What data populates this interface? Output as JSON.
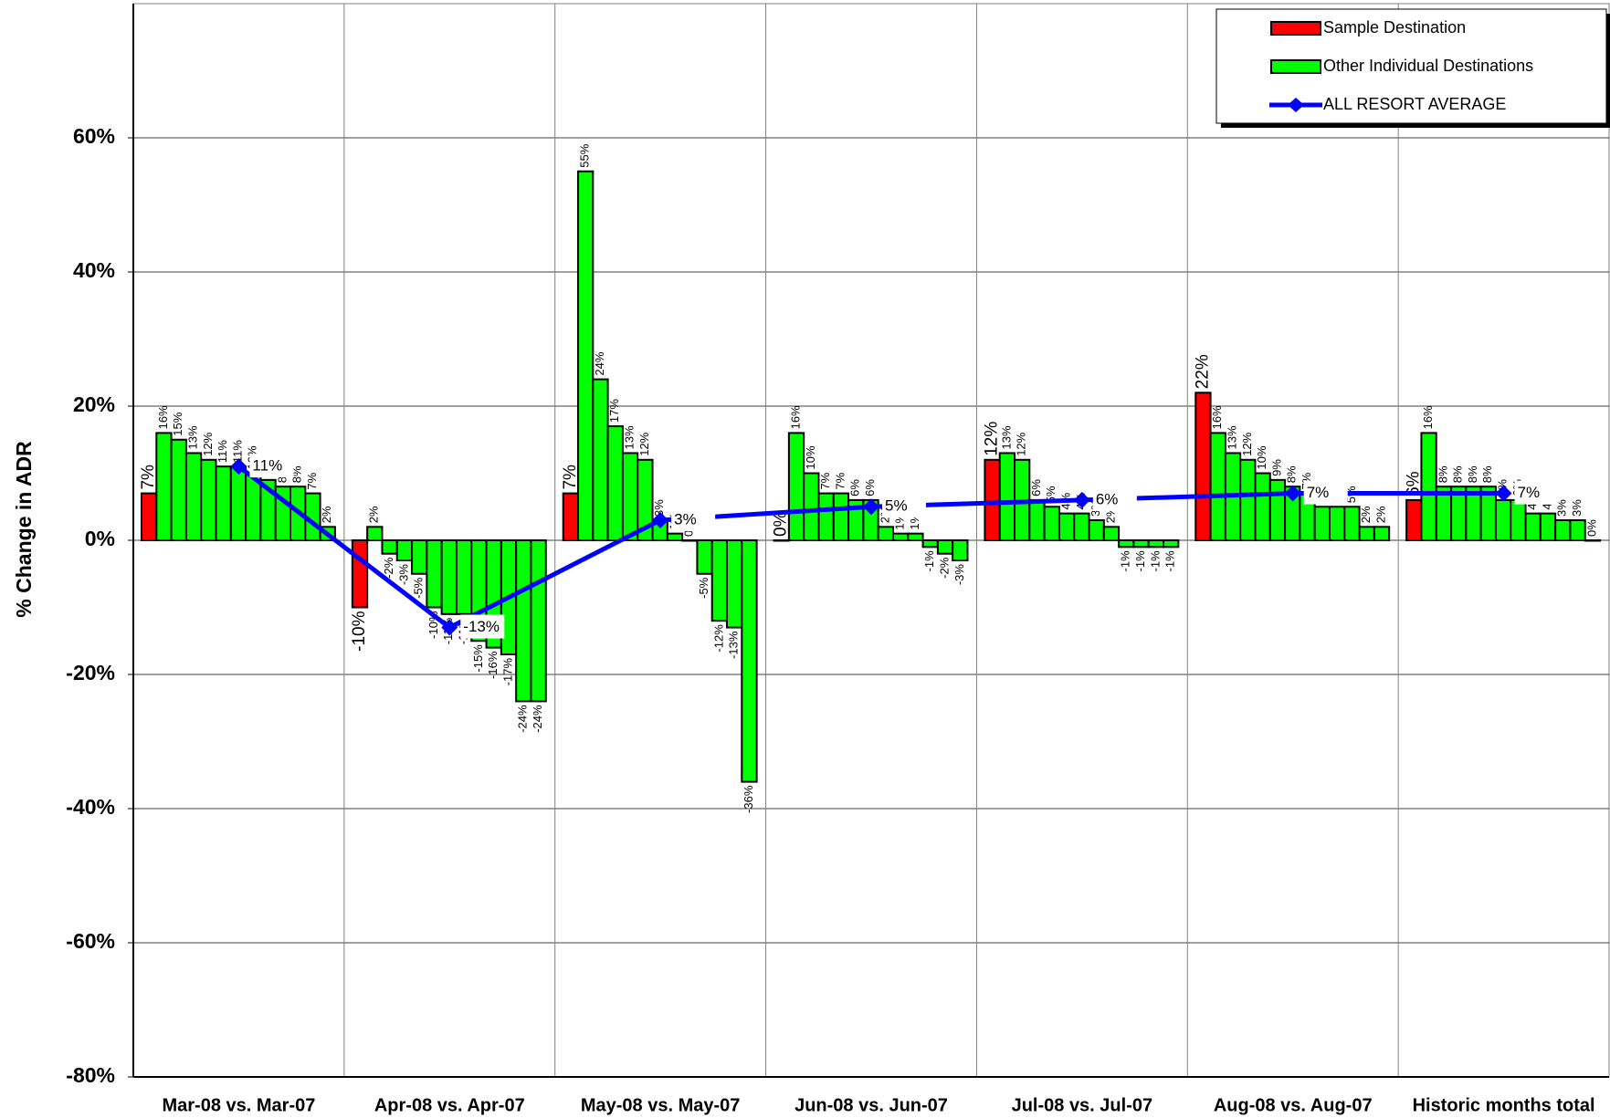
{
  "chart_data": {
    "type": "bar",
    "y_label": "% Change in ADR",
    "categories": [
      "Mar-08 vs. Mar-07",
      "Apr-08 vs. Apr-07",
      "May-08 vs. May-07",
      "Jun-08 vs. Jun-07",
      "Jul-08 vs. Jul-07",
      "Aug-08 vs. Aug-07",
      "Historic months total"
    ],
    "ylim": [
      -80,
      80
    ],
    "yticks": [
      {
        "value": -80,
        "label": "-80%"
      },
      {
        "value": -60,
        "label": "-60%"
      },
      {
        "value": -40,
        "label": "-40%"
      },
      {
        "value": -20,
        "label": "-20%"
      },
      {
        "value": 0,
        "label": "0%"
      },
      {
        "value": 20,
        "label": "20%"
      },
      {
        "value": 40,
        "label": "40%"
      },
      {
        "value": 60,
        "label": "60%"
      }
    ],
    "grid": true,
    "legend": "top-right",
    "series": [
      {
        "name": "Sample Destination",
        "color": "#ff0000",
        "values": [
          7,
          -10,
          7,
          0,
          12,
          22,
          6
        ],
        "value_labels": [
          "7%",
          "-10%",
          "7%",
          "0%",
          "12%",
          "22%",
          "6%"
        ]
      },
      {
        "name": "Other Individual Destinations",
        "color": "#00ff00",
        "values": [
          [
            16,
            15,
            13,
            12,
            11,
            11,
            10,
            9,
            8,
            8,
            7,
            2
          ],
          [
            2,
            -2,
            -3,
            -5,
            -10,
            -11,
            -11,
            -15,
            -16,
            -17,
            -24,
            -24
          ],
          [
            55,
            24,
            17,
            13,
            12,
            3,
            1,
            0,
            -5,
            -12,
            -13,
            -36
          ],
          [
            16,
            10,
            7,
            7,
            6,
            6,
            2,
            1,
            1,
            -1,
            -2,
            -3
          ],
          [
            13,
            12,
            6,
            5,
            4,
            4,
            3,
            2,
            -1,
            -1,
            -1,
            -1
          ],
          [
            16,
            13,
            12,
            10,
            9,
            8,
            7,
            5,
            5,
            5,
            2,
            2
          ],
          [
            16,
            8,
            8,
            8,
            8,
            6,
            6,
            4,
            4,
            3,
            3,
            0
          ]
        ],
        "value_labels": [
          [
            "16%",
            "15%",
            "13%",
            "12%",
            "11%",
            "11%",
            "10%",
            "9%",
            "8%",
            "8%",
            "7%",
            "2%"
          ],
          [
            "2%",
            "-2%",
            "-3%",
            "-5%",
            "-10%",
            "-11%",
            "-11%",
            "-15%",
            "-16%",
            "-17%",
            "-24%",
            "-24%"
          ],
          [
            "55%",
            "24%",
            "17%",
            "13%",
            "12%",
            "3%",
            "1%",
            "0%",
            "-5%",
            "-12%",
            "-13%",
            "-36%"
          ],
          [
            "16%",
            "10%",
            "7%",
            "7%",
            "6%",
            "6%",
            "2%",
            "1%",
            "1%",
            "-1%",
            "-2%",
            "-3%"
          ],
          [
            "13%",
            "12%",
            "6%",
            "5%",
            "4%",
            "4%",
            "3%",
            "2%",
            "-1%",
            "-1%",
            "-1%",
            "-1%"
          ],
          [
            "16%",
            "13%",
            "12%",
            "10%",
            "9%",
            "8%",
            "7%",
            "5%",
            "5%",
            "5%",
            "2%",
            "2%"
          ],
          [
            "16%",
            "8%",
            "8%",
            "8%",
            "8%",
            "6%",
            "6%",
            "4%",
            "4%",
            "3%",
            "3%",
            "0%"
          ]
        ]
      },
      {
        "name": "ALL RESORT AVERAGE",
        "type": "line",
        "color": "#0000ff",
        "values": [
          11,
          -13,
          3,
          5,
          6,
          7,
          7
        ],
        "value_labels": [
          "11%",
          "-13%",
          "3%",
          "5%",
          "6%",
          "7%",
          "7%"
        ]
      }
    ]
  }
}
